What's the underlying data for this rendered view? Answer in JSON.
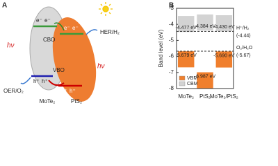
{
  "panel_a": {
    "label": "A",
    "cbo": "CBO",
    "vbo": "VBO",
    "electron": "e⁻",
    "hole": "h⁺",
    "her": "HER/H₂",
    "oer": "OER/O₂",
    "light": "hν",
    "left_material": "MoTe₂",
    "right_material": "PtS₂"
  },
  "chart_data": {
    "type": "floating_bar",
    "panel_label": "B",
    "y_label": "Band level (eV)",
    "categories": [
      "MoTe₂",
      "PtS₂",
      "MoTe₂/PtS₂"
    ],
    "series": [
      {
        "name": "VBM",
        "color": "#f07f2d",
        "values": [
          -5.679,
          -6.987,
          -5.69
        ],
        "value_labels": [
          "-5.679 eV",
          "-6.987 eV",
          "-5.690 eV"
        ]
      },
      {
        "name": "CBM",
        "color": "#d3d3d3",
        "values": [
          -4.477,
          -4.384,
          -4.43
        ],
        "value_labels": [
          "-4.477 eV",
          "-4.384 eV",
          "-4.430 eV"
        ]
      }
    ],
    "reference_lines": [
      {
        "name": "H⁺/H₂",
        "value": -4.44,
        "value_label": "(-4.44)"
      },
      {
        "name": "O₂/H₂O",
        "value": -5.67,
        "value_label": "(-5.67)"
      }
    ],
    "ylim": [
      -8,
      -3
    ],
    "yticks": [
      -8,
      -7,
      -6,
      -5,
      -4,
      -3
    ],
    "legend": "lower left"
  }
}
